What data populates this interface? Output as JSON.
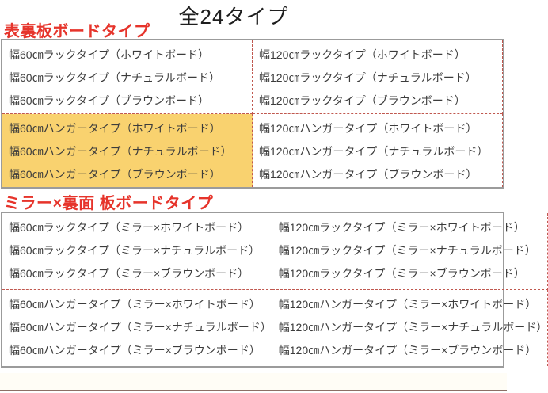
{
  "page": {
    "title": "全24タイプ"
  },
  "sections": [
    {
      "header": "表裏板ボードタイプ",
      "rows": [
        {
          "cells": [
            {
              "highlight": false,
              "items": [
                "幅60㎝ラックタイプ（ホワイトボード）",
                "幅60㎝ラックタイプ（ナチュラルボード）",
                "幅60㎝ラックタイプ（ブラウンボード）"
              ]
            },
            {
              "highlight": false,
              "items": [
                "幅120㎝ラックタイプ（ホワイトボード）",
                "幅120㎝ラックタイプ（ナチュラルボード）",
                "幅120㎝ラックタイプ（ブラウンボード）"
              ]
            }
          ]
        },
        {
          "cells": [
            {
              "highlight": true,
              "items": [
                "幅60㎝ハンガータイプ（ホワイトボード）",
                "幅60㎝ハンガータイプ（ナチュラルボード）",
                "幅60㎝ハンガータイプ（ブラウンボード）"
              ]
            },
            {
              "highlight": false,
              "items": [
                "幅120㎝ハンガータイプ（ホワイトボード）",
                "幅120㎝ハンガータイプ（ナチュラルボード）",
                "幅120㎝ハンガータイプ（ブラウンボード）"
              ]
            }
          ]
        }
      ]
    },
    {
      "header": "ミラー×裏面 板ボードタイプ",
      "rows": [
        {
          "cells": [
            {
              "highlight": false,
              "items": [
                "幅60㎝ラックタイプ（ミラー×ホワイトボード）",
                "幅60㎝ラックタイプ（ミラー×ナチュラルボード）",
                "幅60㎝ラックタイプ（ミラー×ブラウンボード）"
              ]
            },
            {
              "highlight": false,
              "items": [
                "幅120㎝ラックタイプ（ミラー×ホワイトボード）",
                "幅120㎝ラックタイプ（ミラー×ナチュラルボード）",
                "幅120㎝ラックタイプ（ミラー×ブラウンボード）"
              ]
            }
          ]
        },
        {
          "cells": [
            {
              "highlight": false,
              "items": [
                "幅60㎝ハンガータイプ（ミラー×ホワイトボード）",
                "幅60㎝ハンガータイプ（ミラー×ナチュラルボード）",
                "幅60㎝ハンガータイプ（ミラー×ブラウンボード）"
              ]
            },
            {
              "highlight": false,
              "items": [
                "幅120㎝ハンガータイプ（ミラー×ホワイトボード）",
                "幅120㎝ハンガータイプ（ミラー×ナチュラルボード）",
                "幅120㎝ハンガータイプ（ミラー×ブラウンボード）"
              ]
            }
          ]
        }
      ]
    }
  ],
  "colors": {
    "section_header_red": "#e6342b",
    "highlight_yellow": "#f9d26f",
    "table_border_gray": "#9b9b9b",
    "divider_dashed_red": "#c0584f",
    "bottom_line_brown": "#8c6f66",
    "text": "#3c3c3c",
    "title_text": "#1e1e1e"
  }
}
